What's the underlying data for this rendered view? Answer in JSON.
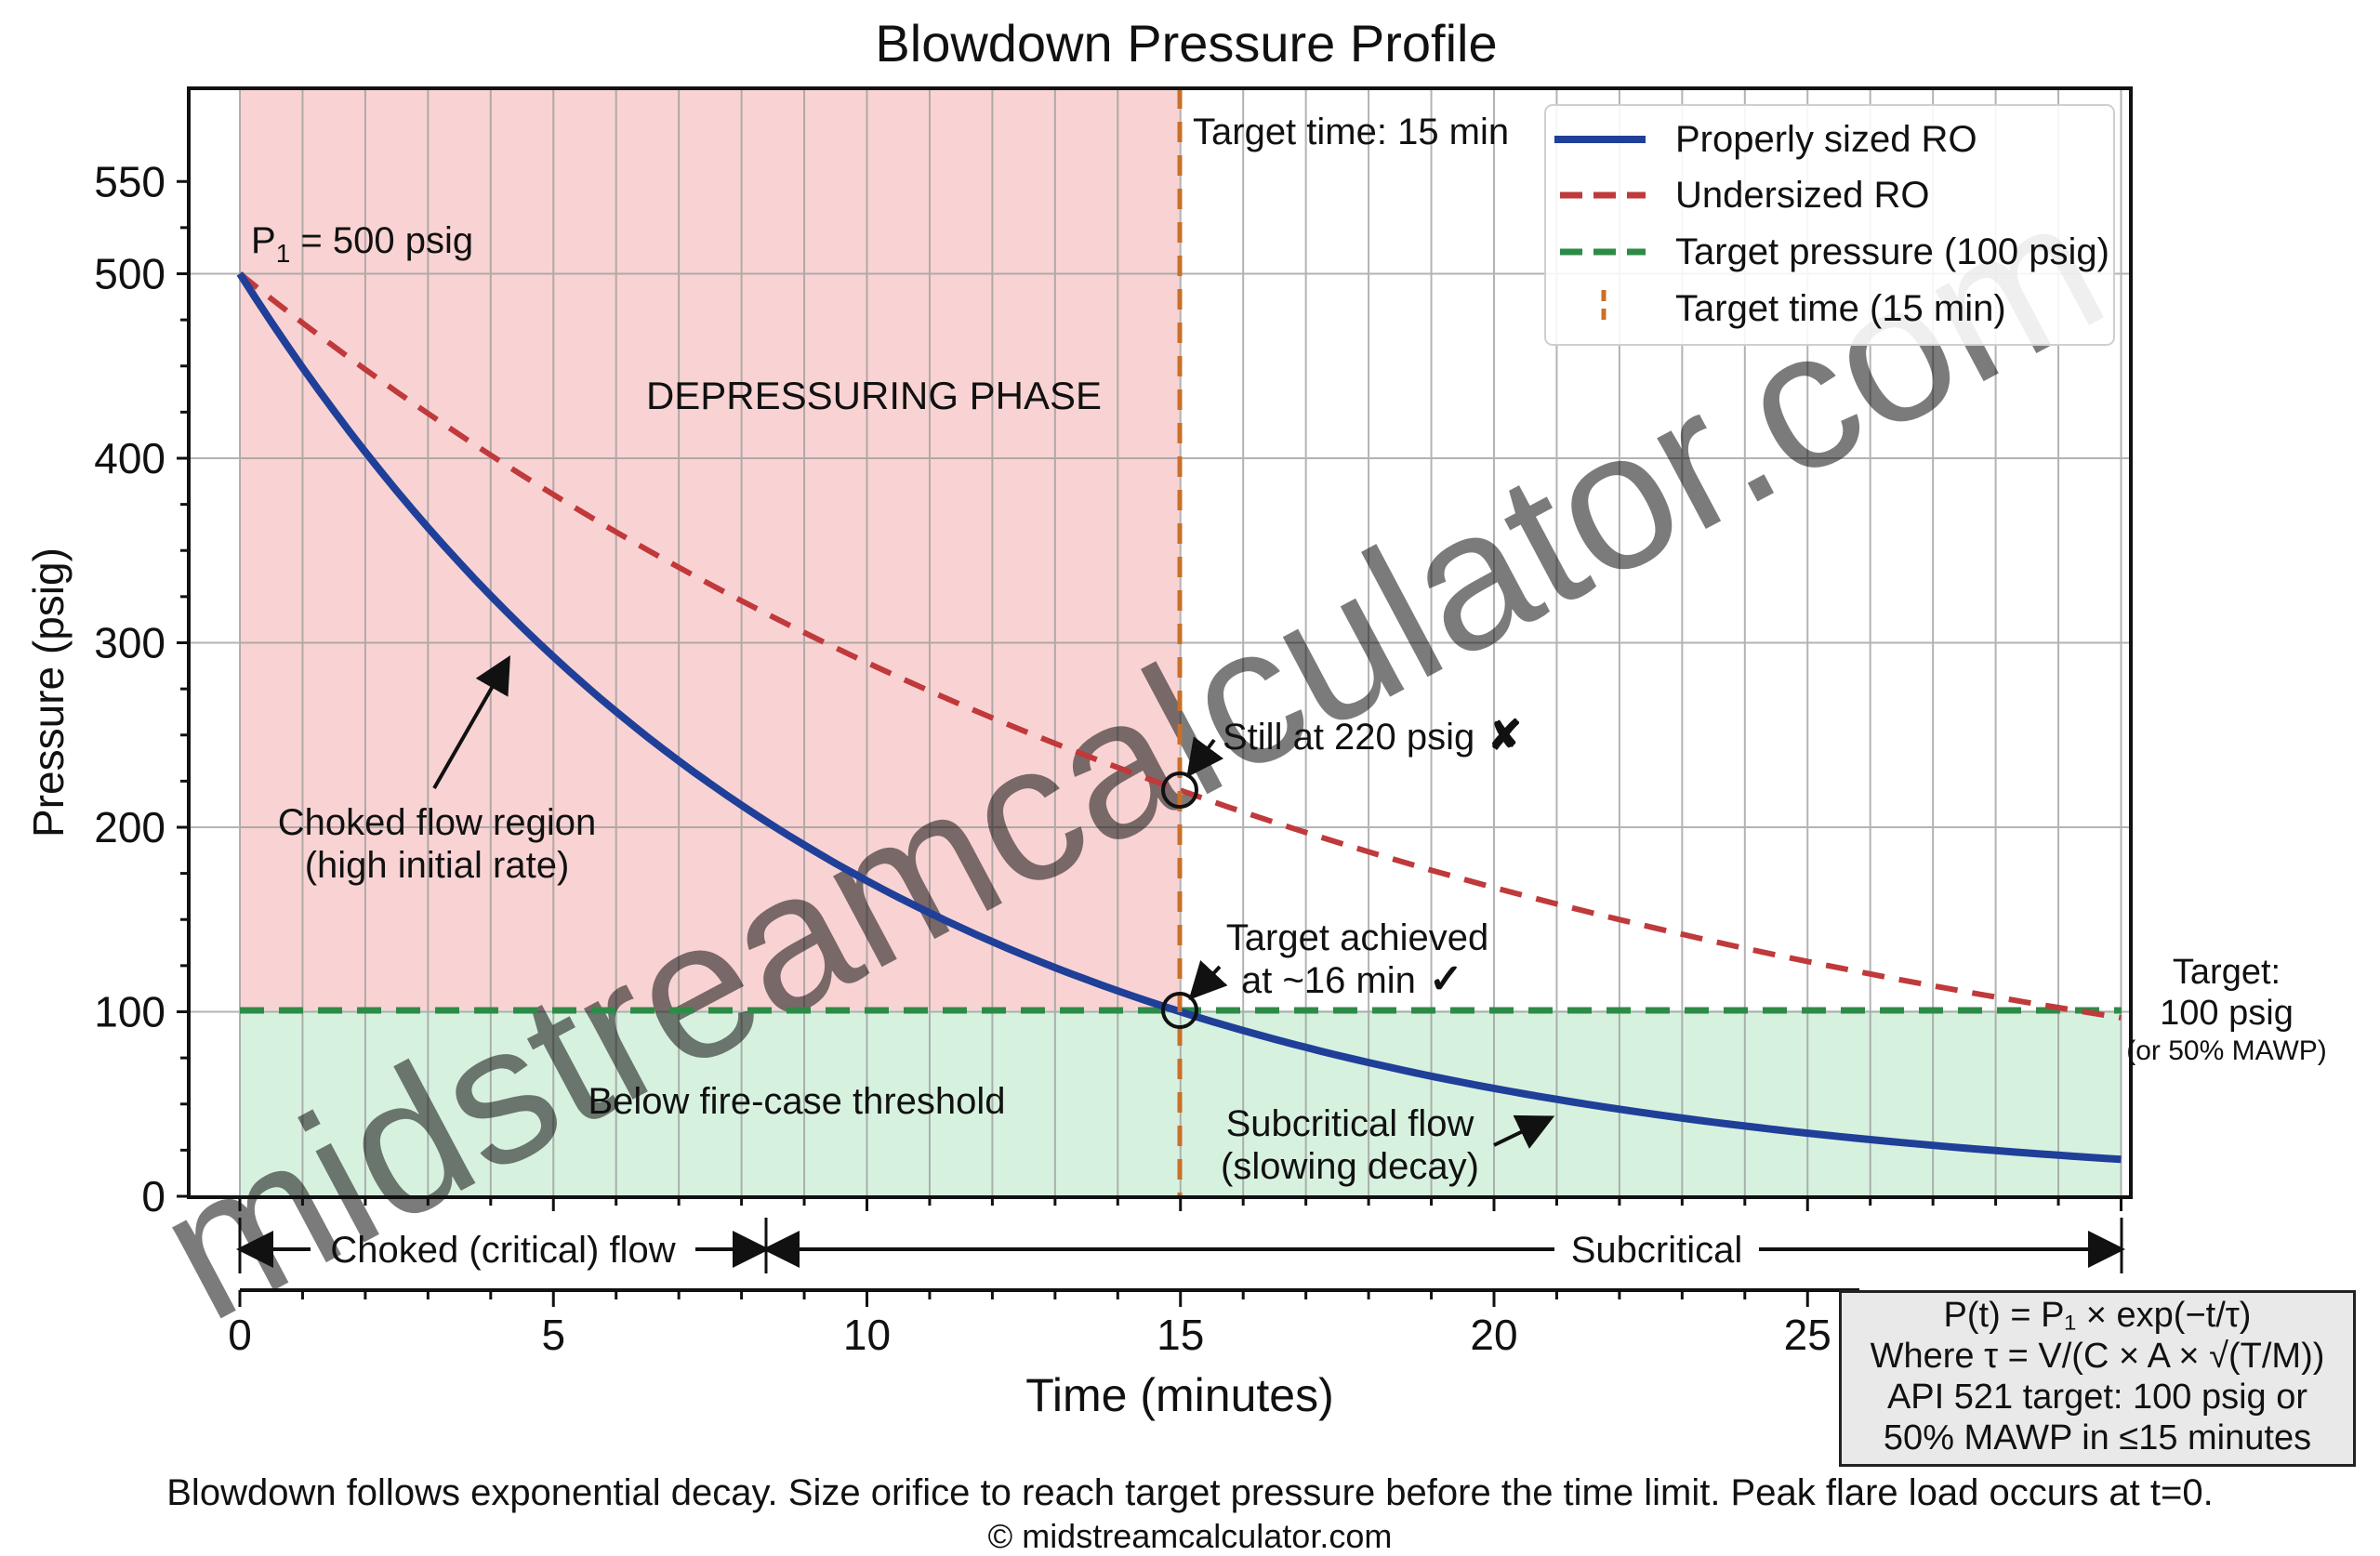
{
  "title": "Blowdown Pressure Profile",
  "axes": {
    "xlabel": "Time (minutes)",
    "ylabel": "Pressure (psig)",
    "xticks": [
      "0",
      "5",
      "10",
      "15",
      "20",
      "25"
    ],
    "yticks": [
      "0",
      "100",
      "200",
      "300",
      "400",
      "500",
      "550"
    ]
  },
  "legend": {
    "items": [
      {
        "label": "Properly sized RO",
        "color": "#1f3f99",
        "style": "solid"
      },
      {
        "label": "Undersized RO",
        "color": "#c0393b",
        "style": "dashed"
      },
      {
        "label": "Target pressure (100 psig)",
        "color": "#2e8b47",
        "style": "dashed"
      },
      {
        "label": "Target time (15 min)",
        "color": "#c8702a",
        "style": "vertical-dashed"
      }
    ]
  },
  "annotations": {
    "p1": "P",
    "p1_sub": "1",
    "p1_rest": " = 500 psig",
    "target_time": "Target time: 15 min",
    "depressuring": "DEPRESSURING PHASE",
    "choked_region_1": "Choked flow region",
    "choked_region_2": "(high initial rate)",
    "still_220": "Still at 220 psig",
    "still_220_mark": "✘",
    "target_achieved_1": "Target achieved",
    "target_achieved_2": "at ~16 min",
    "target_achieved_mark": "✓",
    "below_threshold": "Below fire-case threshold",
    "subcritical_flow_1": "Subcritical flow",
    "subcritical_flow_2": "(slowing decay)",
    "target_right_1": "Target:",
    "target_right_2": "100 psig",
    "target_right_3": "(or 50% MAWP)",
    "choked_span": "Choked (critical) flow",
    "subcritical_span": "Subcritical"
  },
  "formula": {
    "line1": "P(t) = P₁ × exp(−t/τ)",
    "line2": "Where τ = V/(C × A × √(T/M))",
    "line3": "API 521 target: 100 psig or",
    "line4": "50% MAWP in ≤15 minutes"
  },
  "caption": "Blowdown follows exponential decay. Size orifice to reach target pressure before the time limit. Peak flare load occurs at t=0.",
  "copyright": "© midstreamcalculator.com",
  "watermark": "midstreamcalculator.com",
  "chart_data": {
    "type": "line",
    "title": "Blowdown Pressure Profile",
    "xlabel": "Time (minutes)",
    "ylabel": "Pressure (psig)",
    "xlim": [
      0,
      30
    ],
    "ylim": [
      0,
      550
    ],
    "grid": true,
    "legend_position": "upper right",
    "x": [
      0,
      2.5,
      5,
      7.5,
      10,
      12.5,
      15,
      17.5,
      20,
      22.5,
      25,
      27.5,
      30
    ],
    "series": [
      {
        "name": "Properly sized RO",
        "style": "solid",
        "color": "#1f3f99",
        "values": [
          500,
          382,
          292,
          223,
          171,
          131,
          100,
          76,
          58,
          45,
          34,
          26,
          20
        ]
      },
      {
        "name": "Undersized RO",
        "style": "dashed",
        "color": "#c0393b",
        "values": [
          500,
          436,
          380,
          332,
          290,
          252,
          220,
          192,
          168,
          146,
          128,
          111,
          97
        ]
      },
      {
        "name": "Target pressure (100 psig)",
        "style": "dashed",
        "color": "#2e8b47",
        "values": [
          100,
          100,
          100,
          100,
          100,
          100,
          100,
          100,
          100,
          100,
          100,
          100,
          100
        ]
      }
    ],
    "vertical_lines": [
      {
        "name": "Target time (15 min)",
        "x": 15,
        "color": "#c8702a"
      }
    ],
    "shaded_regions": [
      {
        "name": "Depressuring phase",
        "x": [
          0,
          15
        ],
        "y": [
          100,
          550
        ],
        "color": "#f9d6d6"
      },
      {
        "name": "Below fire-case threshold",
        "x": [
          0,
          30
        ],
        "y": [
          0,
          100
        ],
        "color": "#d9f2e1"
      }
    ],
    "markers": [
      {
        "x": 15,
        "y": 220,
        "label": "Still at 220 psig ✘"
      },
      {
        "x": 15,
        "y": 100,
        "label": "Target achieved at ~16 min ✓"
      }
    ],
    "spans": [
      {
        "label": "Choked (critical) flow",
        "x": [
          0,
          8.4
        ]
      },
      {
        "label": "Subcritical",
        "x": [
          8.4,
          30
        ]
      }
    ]
  }
}
